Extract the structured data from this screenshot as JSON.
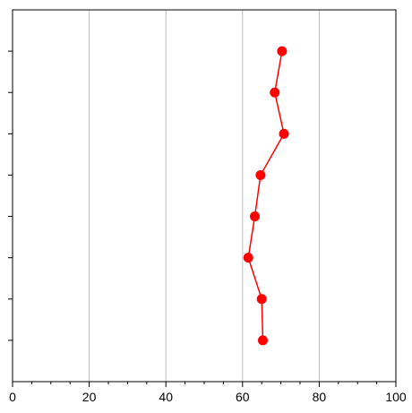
{
  "chart_data": {
    "type": "line",
    "title": "",
    "xlabel": "",
    "ylabel": "",
    "xlim": [
      0,
      100
    ],
    "ylim": [
      0,
      9
    ],
    "x_ticks": [
      0,
      20,
      40,
      60,
      80,
      100
    ],
    "x_tick_labels": [
      "0",
      "20",
      "40",
      "60",
      "80",
      "100"
    ],
    "y_ticks": [
      1,
      2,
      3,
      4,
      5,
      6,
      7,
      8
    ],
    "grid": {
      "x": true,
      "y": false
    },
    "legend": "none",
    "series": [
      {
        "color": "#ff0000",
        "marker": "circle",
        "points": [
          {
            "x": 65.3,
            "y": 1
          },
          {
            "x": 65.0,
            "y": 2
          },
          {
            "x": 61.5,
            "y": 3
          },
          {
            "x": 63.2,
            "y": 4
          },
          {
            "x": 64.7,
            "y": 5
          },
          {
            "x": 70.8,
            "y": 6
          },
          {
            "x": 68.4,
            "y": 7
          },
          {
            "x": 70.3,
            "y": 8
          }
        ]
      }
    ]
  }
}
